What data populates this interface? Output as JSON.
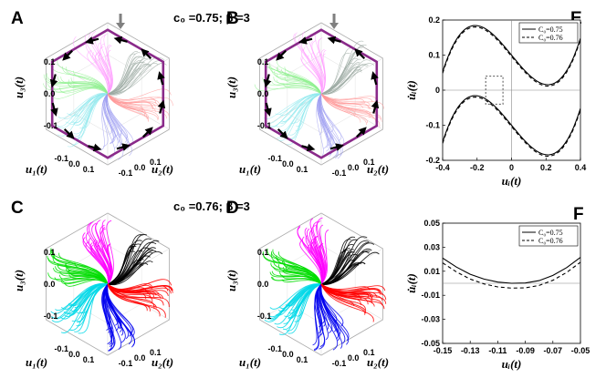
{
  "panels": {
    "A": {
      "label": "A",
      "title": "c₀ =0.75; β =3"
    },
    "B": {
      "label": "B"
    },
    "C": {
      "label": "C",
      "title": "c₀ =0.76; β =3"
    },
    "D": {
      "label": "D"
    },
    "E": {
      "label": "E"
    },
    "F": {
      "label": "F"
    }
  },
  "hex_axes": {
    "u1_label": "u₁(t)",
    "u2_label": "u₂(t)",
    "u3_label": "u₃(t)",
    "u1_ticks": [
      "-0.1",
      "0.0",
      "0.1"
    ],
    "u2_ticks": [
      "-0.1",
      "0.0",
      "0.1"
    ],
    "u3_ticks": [
      "0.1",
      "0.0",
      "-0.1"
    ]
  },
  "chart_data": [
    {
      "id": "E",
      "type": "line",
      "xlabel": "uᵢ(t)",
      "ylabel": "u̇ᵢ(t)",
      "xlim": [
        -0.4,
        0.4
      ],
      "ylim": [
        -0.2,
        0.2
      ],
      "xticks": [
        -0.4,
        -0.2,
        0,
        0.2,
        0.4
      ],
      "xtick_labels": [
        "-0.4",
        "-0.2",
        "0",
        "0.2",
        "0.4"
      ],
      "yticks": [
        -0.2,
        -0.1,
        0,
        0.1,
        0.2
      ],
      "ytick_labels": [
        "-0.2",
        "-0.1",
        "0",
        "0.1",
        "0.2"
      ],
      "legend": [
        "C₀=0.75",
        "C₀=0.76"
      ],
      "series": [
        {
          "name": "C₀=0.75",
          "style": "solid",
          "a": 0.0,
          "b": -0.6,
          "c": 0.0,
          "d": 4.5
        },
        {
          "name": "C₀=0.76",
          "style": "dashed",
          "a": -0.004,
          "b": -0.6,
          "c": 0.0,
          "d": 4.5
        }
      ],
      "branch_offsets": [
        0.1,
        -0.1
      ]
    },
    {
      "id": "F",
      "type": "line",
      "xlabel": "uᵢ(t)",
      "ylabel": "u̇ᵢ(t)",
      "xlim": [
        -0.15,
        -0.05
      ],
      "ylim": [
        -0.05,
        0.05
      ],
      "xticks": [
        -0.15,
        -0.13,
        -0.11,
        -0.09,
        -0.07,
        -0.05
      ],
      "xtick_labels": [
        "-0.15",
        "-0.13",
        "-0.11",
        "-0.09",
        "-0.07",
        "-0.05"
      ],
      "yticks": [
        -0.05,
        -0.03,
        -0.01,
        0.01,
        0.03,
        0.05
      ],
      "ytick_labels": [
        "-0.05",
        "-0.03",
        "-0.01",
        "0.01",
        "0.03",
        "0.05"
      ],
      "legend": [
        "C₀=0.75",
        "C₀=0.76"
      ],
      "series": [
        {
          "name": "C₀=0.75",
          "style": "solid",
          "x": [
            -0.15,
            -0.14,
            -0.13,
            -0.12,
            -0.11,
            -0.1,
            -0.09,
            -0.08,
            -0.07,
            -0.06,
            -0.05
          ],
          "y": [
            0.021,
            0.0135,
            0.0075,
            0.0035,
            0.001,
            0.0,
            0.0002,
            0.0022,
            0.0065,
            0.013,
            0.0215
          ]
        },
        {
          "name": "C₀=0.76",
          "style": "dashed",
          "x": [
            -0.15,
            -0.14,
            -0.13,
            -0.12,
            -0.11,
            -0.1,
            -0.09,
            -0.08,
            -0.07,
            -0.06,
            -0.05
          ],
          "y": [
            0.017,
            0.0095,
            0.0035,
            -0.0005,
            -0.003,
            -0.004,
            -0.0038,
            -0.0018,
            0.0025,
            0.009,
            0.0175
          ]
        }
      ]
    }
  ],
  "colors": {
    "hex_outline": "#8a2a8a",
    "arrow": "#000000",
    "marker_arrow": "#808080",
    "dotted_box": "#555555",
    "sectors_light": [
      "#9aa8a0",
      "#ff9eff",
      "#8ef08e",
      "#8ee8ee",
      "#9f9ff2",
      "#ff9a9a"
    ],
    "sectors_dark": [
      "#000000",
      "#ff00ff",
      "#00dd00",
      "#00d8e8",
      "#0000ee",
      "#ff0000"
    ]
  }
}
